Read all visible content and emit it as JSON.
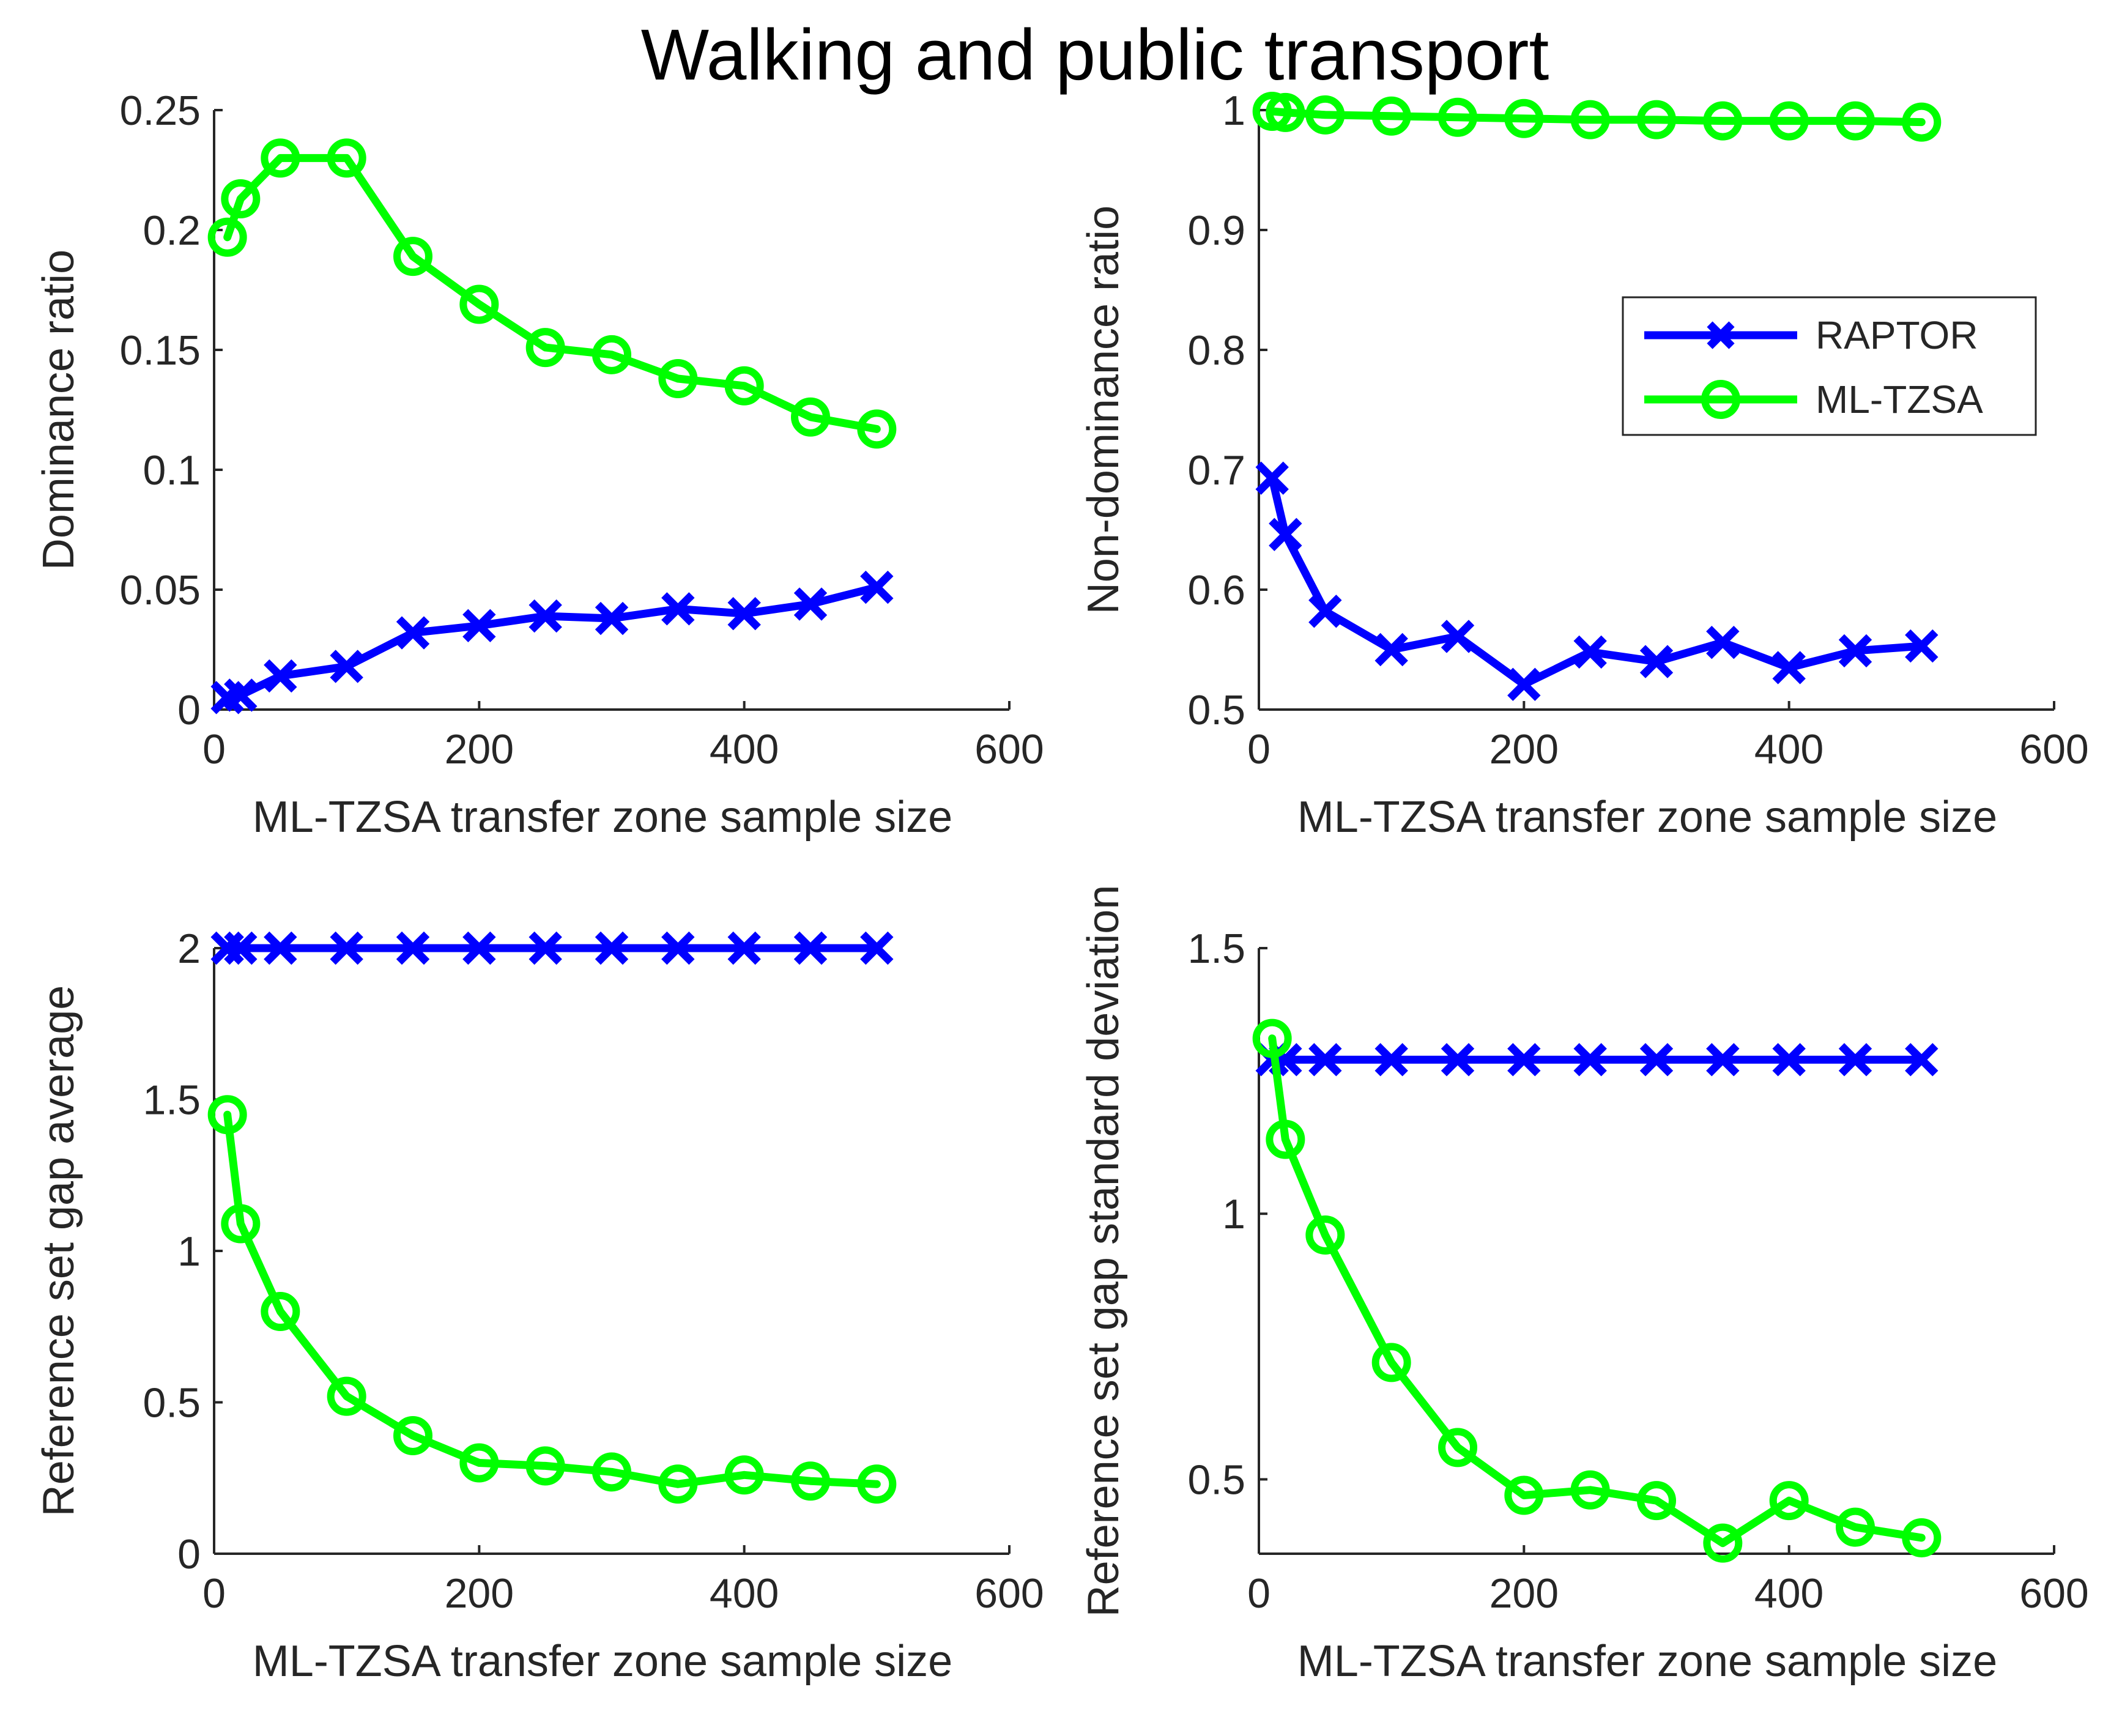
{
  "figure_title": "Walking and public transport",
  "colors": {
    "raptor": "#0000ff",
    "mltzsa": "#00ff00",
    "axis": "#262626",
    "background": "#ffffff"
  },
  "chart_data": [
    {
      "type": "line",
      "title": "",
      "xlabel": "ML-TZSA transfer zone sample size",
      "ylabel": "Dominance ratio",
      "xlim": [
        0,
        600
      ],
      "ylim": [
        0,
        0.25
      ],
      "xticks": [
        "0",
        "200",
        "400",
        "600"
      ],
      "yticks": [
        "0",
        "0.05",
        "0.1",
        "0.15",
        "0.2",
        "0.25"
      ],
      "grid": false,
      "legend": null,
      "x": [
        10,
        20,
        50,
        100,
        150,
        200,
        250,
        300,
        350,
        400,
        450,
        500
      ],
      "series": [
        {
          "name": "RAPTOR",
          "marker": "x",
          "values": [
            0.005,
            0.006,
            0.014,
            0.018,
            0.032,
            0.035,
            0.039,
            0.038,
            0.042,
            0.04,
            0.044,
            0.051
          ]
        },
        {
          "name": "ML-TZSA",
          "marker": "o",
          "values": [
            0.197,
            0.213,
            0.23,
            0.23,
            0.189,
            0.169,
            0.151,
            0.148,
            0.138,
            0.135,
            0.122,
            0.117
          ]
        }
      ]
    },
    {
      "type": "line",
      "title": "",
      "xlabel": "ML-TZSA transfer zone sample size",
      "ylabel": "Non-dominance ratio",
      "xlim": [
        0,
        600
      ],
      "ylim": [
        0.5,
        1
      ],
      "xticks": [
        "0",
        "200",
        "400",
        "600"
      ],
      "yticks": [
        "0.5",
        "0.6",
        "0.7",
        "0.8",
        "0.9",
        "1"
      ],
      "grid": false,
      "legend": "top-right",
      "legend_entries": [
        "RAPTOR",
        "ML-TZSA"
      ],
      "x": [
        10,
        20,
        50,
        100,
        150,
        200,
        250,
        300,
        350,
        400,
        450,
        500
      ],
      "series": [
        {
          "name": "RAPTOR",
          "marker": "x",
          "values": [
            0.693,
            0.646,
            0.582,
            0.55,
            0.561,
            0.521,
            0.548,
            0.54,
            0.556,
            0.535,
            0.549,
            0.553
          ]
        },
        {
          "name": "ML-TZSA",
          "marker": "o",
          "values": [
            0.999,
            0.998,
            0.996,
            0.995,
            0.994,
            0.993,
            0.992,
            0.992,
            0.991,
            0.991,
            0.991,
            0.99
          ]
        }
      ]
    },
    {
      "type": "line",
      "title": "",
      "xlabel": "ML-TZSA transfer zone sample size",
      "ylabel": "Reference set gap average",
      "xlim": [
        0,
        600
      ],
      "ylim": [
        0,
        2
      ],
      "xticks": [
        "0",
        "200",
        "400",
        "600"
      ],
      "yticks": [
        "0",
        "0.5",
        "1",
        "1.5",
        "2"
      ],
      "grid": false,
      "legend": null,
      "x": [
        10,
        20,
        50,
        100,
        150,
        200,
        250,
        300,
        350,
        400,
        450,
        500
      ],
      "series": [
        {
          "name": "RAPTOR",
          "marker": "x",
          "values": [
            2,
            2,
            2,
            2,
            2,
            2,
            2,
            2,
            2,
            2,
            2,
            2
          ]
        },
        {
          "name": "ML-TZSA",
          "marker": "o",
          "values": [
            1.45,
            1.09,
            0.8,
            0.52,
            0.39,
            0.3,
            0.29,
            0.27,
            0.23,
            0.26,
            0.24,
            0.23
          ]
        }
      ]
    },
    {
      "type": "line",
      "title": "",
      "xlabel": "ML-TZSA transfer zone sample size",
      "ylabel": "Reference set gap standard deviation",
      "xlim": [
        0,
        600
      ],
      "ylim": [
        0.36,
        1.5
      ],
      "xticks": [
        "0",
        "200",
        "400",
        "600"
      ],
      "yticks": [
        "0.5",
        "1",
        "1.5"
      ],
      "ytick_values": [
        0.5,
        1,
        1.5
      ],
      "grid": false,
      "legend": null,
      "x": [
        10,
        20,
        50,
        100,
        150,
        200,
        250,
        300,
        350,
        400,
        450,
        500
      ],
      "series": [
        {
          "name": "RAPTOR",
          "marker": "x",
          "values": [
            1.29,
            1.29,
            1.29,
            1.29,
            1.29,
            1.29,
            1.29,
            1.29,
            1.29,
            1.29,
            1.29,
            1.29
          ]
        },
        {
          "name": "ML-TZSA",
          "marker": "o",
          "values": [
            1.33,
            1.14,
            0.96,
            0.72,
            0.56,
            0.47,
            0.48,
            0.46,
            0.38,
            0.46,
            0.41,
            0.39
          ]
        }
      ]
    }
  ]
}
